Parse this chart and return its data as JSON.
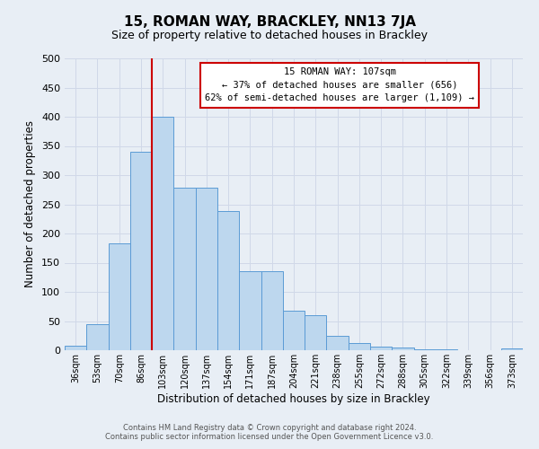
{
  "title": "15, ROMAN WAY, BRACKLEY, NN13 7JA",
  "subtitle": "Size of property relative to detached houses in Brackley",
  "xlabel": "Distribution of detached houses by size in Brackley",
  "ylabel": "Number of detached properties",
  "footer_line1": "Contains HM Land Registry data © Crown copyright and database right 2024.",
  "footer_line2": "Contains public sector information licensed under the Open Government Licence v3.0.",
  "bin_labels": [
    "36sqm",
    "53sqm",
    "70sqm",
    "86sqm",
    "103sqm",
    "120sqm",
    "137sqm",
    "154sqm",
    "171sqm",
    "187sqm",
    "204sqm",
    "221sqm",
    "238sqm",
    "255sqm",
    "272sqm",
    "288sqm",
    "305sqm",
    "322sqm",
    "339sqm",
    "356sqm",
    "373sqm"
  ],
  "bar_values": [
    8,
    45,
    183,
    340,
    400,
    278,
    278,
    238,
    135,
    135,
    68,
    60,
    25,
    12,
    6,
    4,
    2,
    1,
    0,
    0,
    3
  ],
  "bar_color": "#bdd7ee",
  "bar_edge_color": "#5b9bd5",
  "vline_color": "#cc0000",
  "vline_index": 4,
  "ylim": [
    0,
    500
  ],
  "yticks": [
    0,
    50,
    100,
    150,
    200,
    250,
    300,
    350,
    400,
    450,
    500
  ],
  "annotation_title": "15 ROMAN WAY: 107sqm",
  "annotation_line1": "← 37% of detached houses are smaller (656)",
  "annotation_line2": "62% of semi-detached houses are larger (1,109) →",
  "annotation_box_color": "#ffffff",
  "annotation_box_edge_color": "#cc0000",
  "grid_color": "#d0d8e8",
  "background_color": "#e8eef5",
  "title_fontsize": 11,
  "subtitle_fontsize": 9
}
